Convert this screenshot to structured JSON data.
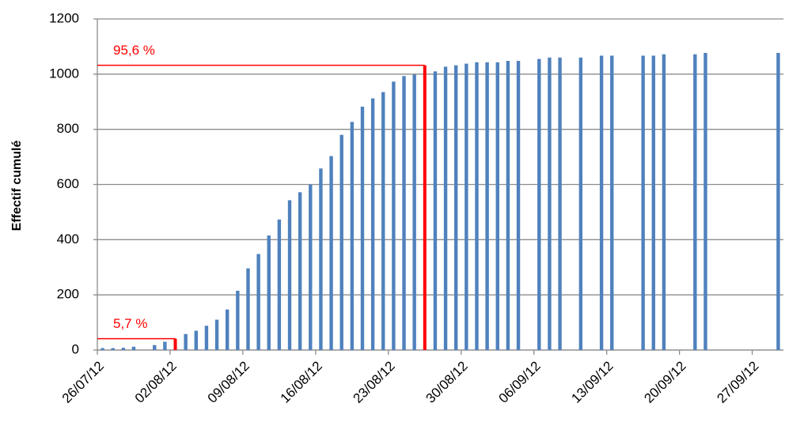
{
  "chart_data": {
    "type": "bar",
    "y_label": "Effectif cumulé",
    "color": "#4f81bd",
    "x": [
      "26/07/12",
      "27/07/12",
      "28/07/12",
      "29/07/12",
      "31/07/12",
      "01/08/12",
      "03/08/12",
      "04/08/12",
      "05/08/12",
      "06/08/12",
      "07/08/12",
      "08/08/12",
      "09/08/12",
      "10/08/12",
      "11/08/12",
      "12/08/12",
      "13/08/12",
      "14/08/12",
      "15/08/12",
      "16/08/12",
      "17/08/12",
      "18/08/12",
      "19/08/12",
      "20/08/12",
      "21/08/12",
      "22/08/12",
      "23/08/12",
      "24/08/12",
      "25/08/12",
      "27/08/12",
      "28/08/12",
      "29/08/12",
      "30/08/12",
      "31/08/12",
      "01/09/12",
      "02/09/12",
      "03/09/12",
      "04/09/12",
      "06/09/12",
      "07/09/12",
      "08/09/12",
      "10/09/12",
      "12/09/12",
      "13/09/12",
      "16/09/12",
      "17/09/12",
      "18/09/12",
      "21/09/12",
      "22/09/12",
      "29/09/12"
    ],
    "values": [
      7,
      7,
      8,
      12,
      18,
      30,
      58,
      70,
      88,
      110,
      147,
      215,
      296,
      348,
      415,
      473,
      543,
      572,
      600,
      658,
      703,
      780,
      827,
      882,
      912,
      935,
      973,
      993,
      998,
      1010,
      1027,
      1032,
      1038,
      1043,
      1043,
      1043,
      1048,
      1048,
      1055,
      1060,
      1060,
      1060,
      1067,
      1067,
      1067,
      1067,
      1072,
      1072,
      1077,
      1077
    ],
    "xlim": [
      "26/07/12",
      "30/09/12"
    ],
    "xticks": [
      "26/07/12",
      "02/08/12",
      "09/08/12",
      "16/08/12",
      "23/08/12",
      "30/08/12",
      "06/09/12",
      "13/09/12",
      "20/09/12",
      "27/09/12"
    ],
    "ylim": [
      0,
      1200
    ],
    "yticks": [
      0,
      200,
      400,
      600,
      800,
      1000,
      1200
    ],
    "grid": true,
    "annotations": [
      {
        "text": "5,7 %",
        "x": "02/08/12",
        "y": 41,
        "color": "#ff0000"
      },
      {
        "text": "95,6 %",
        "x": "26/08/12",
        "y": 1032,
        "color": "#ff0000"
      }
    ]
  }
}
